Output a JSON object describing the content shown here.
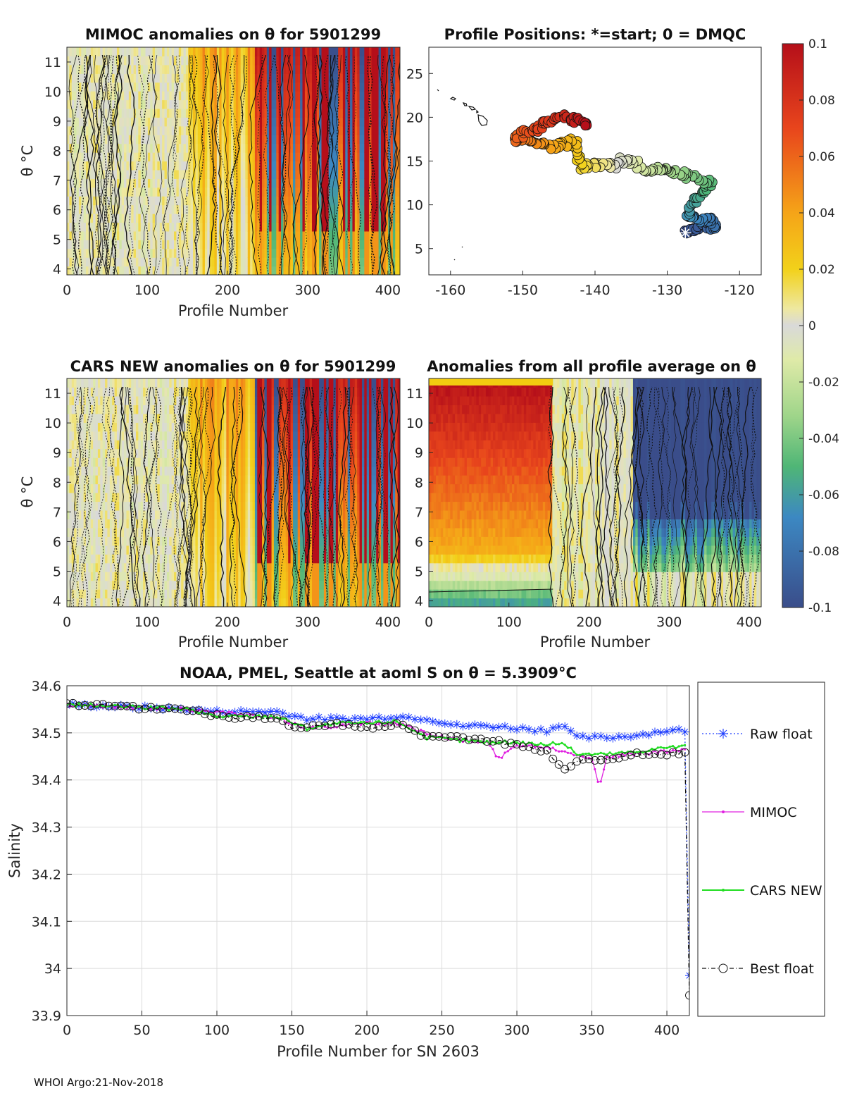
{
  "colors": {
    "red": "#c0141c",
    "orange": "#f07a20",
    "yellow": "#f2cc10",
    "lightyellow": "#eee08a",
    "gray": "#d9d9d9",
    "lightgreen": "#c9e6a0",
    "green": "#5fbf73",
    "teal": "#3aa0a8",
    "navy": "#3d5c9a",
    "raw": "#1a3aff",
    "mimoc": "#e020e0",
    "cars": "#22dd22",
    "best": "#111111"
  },
  "panels": {
    "mimoc_theta": {
      "title": "MIMOC anomalies on θ  for 5901299",
      "ylabel": "θ °C",
      "xlabel": "Profile Number",
      "xticks": [
        "0",
        "100",
        "200",
        "300",
        "400"
      ],
      "yticks": [
        "4",
        "5",
        "6",
        "7",
        "8",
        "9",
        "10",
        "11"
      ]
    },
    "positions": {
      "title": "Profile Positions: *=start; 0 = DMQC",
      "xticks": [
        "-160",
        "-150",
        "-140",
        "-130",
        "-120"
      ],
      "yticks": [
        "5",
        "10",
        "15",
        "20",
        "25"
      ]
    },
    "cars_theta": {
      "title": "CARS NEW anomalies on θ for 5901299",
      "ylabel": "θ °C",
      "xlabel": "Profile Number",
      "xticks": [
        "0",
        "100",
        "200",
        "300",
        "400"
      ],
      "yticks": [
        "4",
        "5",
        "6",
        "7",
        "8",
        "9",
        "10",
        "11"
      ]
    },
    "average_theta": {
      "title": "Anomalies from all profile average on θ",
      "xlabel": "Profile Number",
      "xticks": [
        "0",
        "100",
        "200",
        "300",
        "400"
      ],
      "yticks": [
        "4",
        "5",
        "6",
        "7",
        "8",
        "9",
        "10",
        "11"
      ]
    }
  },
  "colorbar": {
    "ticks": [
      "0.1",
      "0.08",
      "0.06",
      "0.04",
      "0.02",
      "0",
      "-0.02",
      "-0.04",
      "-0.06",
      "-0.08",
      "-0.1"
    ]
  },
  "footer": "WHOI Argo:21-Nov-2018",
  "chart_data": [
    {
      "type": "heatmap",
      "title": "MIMOC anomalies on θ  for 5901299",
      "xlabel": "Profile Number",
      "ylabel": "θ °C",
      "xlim": [
        0,
        415
      ],
      "ylim": [
        3.8,
        11.5
      ],
      "clim": [
        -0.1,
        0.1
      ],
      "segments": [
        {
          "x0": 0,
          "x1": 150,
          "value": 0.0
        },
        {
          "x0": 150,
          "x1": 235,
          "value": 0.03
        },
        {
          "x0": 235,
          "x1": 415,
          "value": 0.08
        }
      ]
    },
    {
      "type": "scatter",
      "title": "Profile Positions: *=start; 0 = DMQC",
      "xlim": [
        -163,
        -117
      ],
      "ylim": [
        2,
        28
      ],
      "start": [
        -127.5,
        6.8
      ],
      "track": [
        [
          -127.5,
          6.8
        ],
        [
          -126,
          7.2
        ],
        [
          -124.5,
          7.6
        ],
        [
          -123.2,
          7.3
        ],
        [
          -124,
          8.4
        ],
        [
          -125.5,
          8.2
        ],
        [
          -127,
          8.8
        ],
        [
          -126.5,
          10.3
        ],
        [
          -125,
          11.5
        ],
        [
          -124,
          12.5
        ],
        [
          -126,
          13
        ],
        [
          -128,
          13.6
        ],
        [
          -130,
          13.7
        ],
        [
          -131,
          14.2
        ],
        [
          -133,
          13.6
        ],
        [
          -134.5,
          14.8
        ],
        [
          -136,
          15.2
        ],
        [
          -137,
          14.5
        ],
        [
          -138.5,
          14.5
        ],
        [
          -140,
          14.6
        ],
        [
          -142,
          14.3
        ],
        [
          -142.5,
          16
        ],
        [
          -143,
          17.3
        ],
        [
          -144.5,
          16.8
        ],
        [
          -146.5,
          16.6
        ],
        [
          -148,
          17
        ],
        [
          -149.5,
          17.6
        ],
        [
          -151,
          17.4
        ],
        [
          -150,
          18.2
        ],
        [
          -148,
          18.6
        ],
        [
          -146.5,
          19.5
        ],
        [
          -145,
          20.2
        ],
        [
          -143.5,
          19.8
        ],
        [
          -142,
          19.6
        ],
        [
          -141,
          19.2
        ]
      ]
    },
    {
      "type": "heatmap",
      "title": "CARS NEW anomalies on θ for 5901299",
      "xlabel": "Profile Number",
      "ylabel": "θ °C",
      "xlim": [
        0,
        415
      ],
      "ylim": [
        3.8,
        11.5
      ],
      "clim": [
        -0.1,
        0.1
      ],
      "segments": [
        {
          "x0": 0,
          "x1": 150,
          "value": 0.0
        },
        {
          "x0": 150,
          "x1": 235,
          "value": 0.03
        },
        {
          "x0": 235,
          "x1": 415,
          "value": 0.08
        }
      ]
    },
    {
      "type": "heatmap",
      "title": "Anomalies from all profile average on θ",
      "xlabel": "Profile Number",
      "xlim": [
        0,
        415
      ],
      "ylim": [
        3.8,
        11.5
      ],
      "clim": [
        -0.1,
        0.1
      ],
      "segments": [
        {
          "x0": 0,
          "x1": 155,
          "value": 0.1
        },
        {
          "x0": 155,
          "x1": 255,
          "value": 0.0
        },
        {
          "x0": 255,
          "x1": 415,
          "value": -0.1
        }
      ]
    },
    {
      "type": "line",
      "title": "NOAA, PMEL, Seattle at aoml S on θ = 5.3909°C",
      "xlabel": "Profile Number for SN 2603",
      "ylabel": "Salinity",
      "xlim": [
        0,
        415
      ],
      "ylim": [
        33.9,
        34.6
      ],
      "xticks": [
        "0",
        "50",
        "100",
        "150",
        "200",
        "250",
        "300",
        "350",
        "400"
      ],
      "yticks": [
        "33.9",
        "34",
        "34.1",
        "34.2",
        "34.3",
        "34.4",
        "34.5",
        "34.6"
      ],
      "series": [
        {
          "name": "Raw float",
          "x": [
            0,
            40,
            80,
            100,
            140,
            160,
            180,
            200,
            220,
            240,
            260,
            280,
            300,
            320,
            330,
            340,
            360,
            380,
            400,
            413,
            415
          ],
          "y": [
            34.56,
            34.555,
            34.55,
            34.545,
            34.545,
            34.53,
            34.53,
            34.53,
            34.535,
            34.53,
            34.515,
            34.515,
            34.51,
            34.505,
            34.52,
            34.49,
            34.49,
            34.495,
            34.505,
            34.505,
            33.985
          ]
        },
        {
          "name": "MIMOC",
          "x": [
            0,
            40,
            80,
            100,
            140,
            160,
            180,
            200,
            220,
            240,
            260,
            280,
            288,
            300,
            320,
            340,
            350,
            355,
            360,
            380,
            400,
            413
          ],
          "y": [
            34.56,
            34.555,
            34.55,
            34.545,
            34.53,
            34.51,
            34.515,
            34.52,
            34.52,
            34.5,
            34.485,
            34.48,
            34.445,
            34.475,
            34.47,
            34.455,
            34.445,
            34.385,
            34.45,
            34.455,
            34.46,
            34.465
          ]
        },
        {
          "name": "CARS NEW",
          "x": [
            0,
            40,
            80,
            100,
            140,
            160,
            180,
            200,
            220,
            240,
            260,
            280,
            300,
            320,
            330,
            340,
            360,
            380,
            400,
            413
          ],
          "y": [
            34.56,
            34.555,
            34.55,
            34.535,
            34.535,
            34.51,
            34.52,
            34.52,
            34.525,
            34.49,
            34.485,
            34.48,
            34.48,
            34.475,
            34.48,
            34.455,
            34.455,
            34.46,
            34.47,
            34.47
          ]
        },
        {
          "name": "Best float",
          "x": [
            0,
            40,
            80,
            100,
            140,
            150,
            160,
            180,
            200,
            220,
            240,
            260,
            280,
            300,
            320,
            333,
            340,
            360,
            380,
            400,
            413,
            415
          ],
          "y": [
            34.56,
            34.555,
            34.55,
            34.535,
            34.53,
            34.51,
            34.515,
            34.52,
            34.51,
            34.52,
            34.49,
            34.49,
            34.485,
            34.475,
            34.46,
            34.42,
            34.44,
            34.445,
            34.455,
            34.455,
            34.46,
            33.943
          ]
        }
      ]
    }
  ]
}
